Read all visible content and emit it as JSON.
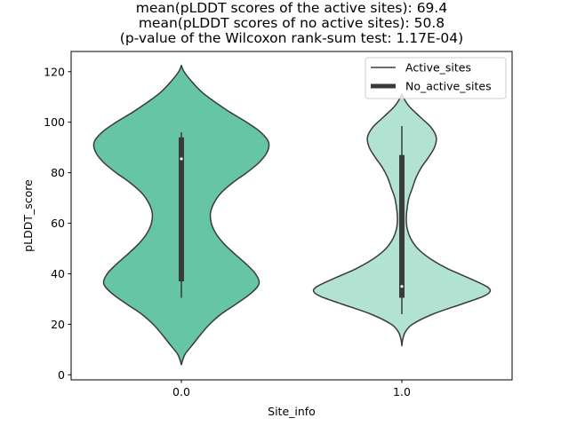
{
  "chart_data": {
    "type": "violin",
    "title": [
      "mean(pLDDT scores of the active sites): 69.4",
      "mean(pLDDT scores of no active sites): 50.8",
      "(p-value of the Wilcoxon rank-sum test: 1.17E-04)"
    ],
    "xlabel": "Site_info",
    "ylabel": "pLDDT_score",
    "categories": [
      "0.0",
      "1.0"
    ],
    "ylim": [
      -2,
      128
    ],
    "yticks": [
      0,
      20,
      40,
      60,
      80,
      100,
      120
    ],
    "legend": {
      "position": "top-right",
      "entries": [
        {
          "label": "Active_sites",
          "style": "thin-line"
        },
        {
          "label": "No_active_sites",
          "style": "thick-line"
        }
      ]
    },
    "series": [
      {
        "name": "0.0",
        "color": "#66c5a5",
        "median": 85.5,
        "q1": 37,
        "q3": 94,
        "whisker_low": 30.5,
        "whisker_high": 96,
        "range": [
          4,
          122.5
        ],
        "density": [
          [
            4,
            0.0
          ],
          [
            8,
            0.04
          ],
          [
            12,
            0.13
          ],
          [
            16,
            0.22
          ],
          [
            20,
            0.32
          ],
          [
            24,
            0.45
          ],
          [
            28,
            0.62
          ],
          [
            32,
            0.78
          ],
          [
            36,
            0.88
          ],
          [
            40,
            0.84
          ],
          [
            44,
            0.73
          ],
          [
            48,
            0.6
          ],
          [
            52,
            0.48
          ],
          [
            56,
            0.39
          ],
          [
            60,
            0.34
          ],
          [
            64,
            0.33
          ],
          [
            68,
            0.37
          ],
          [
            72,
            0.45
          ],
          [
            76,
            0.58
          ],
          [
            80,
            0.74
          ],
          [
            84,
            0.88
          ],
          [
            88,
            0.97
          ],
          [
            92,
            0.99
          ],
          [
            96,
            0.9
          ],
          [
            100,
            0.74
          ],
          [
            104,
            0.55
          ],
          [
            108,
            0.38
          ],
          [
            112,
            0.23
          ],
          [
            116,
            0.12
          ],
          [
            120,
            0.03
          ],
          [
            122.5,
            0.0
          ]
        ]
      },
      {
        "name": "1.0",
        "color": "#b2e2d2",
        "median": 35,
        "q1": 30.5,
        "q3": 87,
        "whisker_low": 24,
        "whisker_high": 98.5,
        "range": [
          11.5,
          111
        ],
        "density": [
          [
            11.5,
            0.0
          ],
          [
            14,
            0.01
          ],
          [
            17,
            0.04
          ],
          [
            20,
            0.12
          ],
          [
            24,
            0.35
          ],
          [
            28,
            0.68
          ],
          [
            31,
            0.92
          ],
          [
            33,
            1.0
          ],
          [
            35,
            0.96
          ],
          [
            38,
            0.78
          ],
          [
            42,
            0.52
          ],
          [
            46,
            0.32
          ],
          [
            50,
            0.18
          ],
          [
            54,
            0.1
          ],
          [
            58,
            0.06
          ],
          [
            62,
            0.05
          ],
          [
            66,
            0.06
          ],
          [
            70,
            0.08
          ],
          [
            74,
            0.12
          ],
          [
            78,
            0.16
          ],
          [
            82,
            0.22
          ],
          [
            86,
            0.3
          ],
          [
            90,
            0.37
          ],
          [
            94,
            0.39
          ],
          [
            98,
            0.33
          ],
          [
            102,
            0.21
          ],
          [
            106,
            0.09
          ],
          [
            109,
            0.03
          ],
          [
            111,
            0.0
          ]
        ]
      }
    ]
  }
}
